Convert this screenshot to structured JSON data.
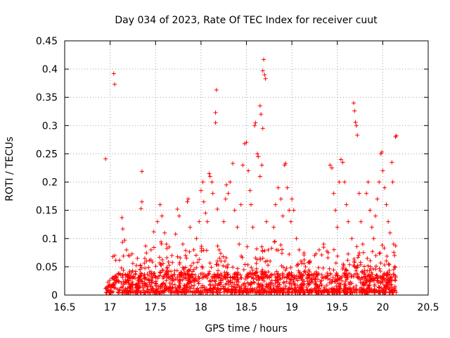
{
  "chart_data": {
    "type": "scatter",
    "title": "Day 034 of 2023, Rate Of TEC Index for receiver cuut",
    "xlabel": "GPS time / hours",
    "ylabel": "ROTI / TECUs",
    "xlim": [
      16.5,
      20.5
    ],
    "ylim": [
      0,
      0.45
    ],
    "xticks": [
      "16.5",
      "17",
      "17.5",
      "18",
      "18.5",
      "19",
      "19.5",
      "20",
      "20.5"
    ],
    "yticks": [
      "0",
      "0.05",
      "0.1",
      "0.15",
      "0.2",
      "0.25",
      "0.3",
      "0.35",
      "0.4",
      "0.45"
    ],
    "grid": true,
    "marker": "+",
    "color": "#ff0000",
    "series": [
      {
        "name": "ROTI",
        "points": [
          [
            16.95,
            0.241
          ],
          [
            17.04,
            0.392
          ],
          [
            17.05,
            0.373
          ],
          [
            17.03,
            0.068
          ],
          [
            17.05,
            0.07
          ],
          [
            17.13,
            0.137
          ],
          [
            17.14,
            0.117
          ],
          [
            17.16,
            0.097
          ],
          [
            17.18,
            0.08
          ],
          [
            17.2,
            0.07
          ],
          [
            17.25,
            0.056
          ],
          [
            17.3,
            0.065
          ],
          [
            17.33,
            0.052
          ],
          [
            17.35,
            0.219
          ],
          [
            17.35,
            0.165
          ],
          [
            17.34,
            0.153
          ],
          [
            17.4,
            0.06
          ],
          [
            17.45,
            0.08
          ],
          [
            17.48,
            0.112
          ],
          [
            17.52,
            0.13
          ],
          [
            17.55,
            0.16
          ],
          [
            17.57,
            0.14
          ],
          [
            17.6,
            0.11
          ],
          [
            17.62,
            0.09
          ],
          [
            17.65,
            0.085
          ],
          [
            17.68,
            0.07
          ],
          [
            17.72,
            0.108
          ],
          [
            17.74,
            0.152
          ],
          [
            17.76,
            0.14
          ],
          [
            17.8,
            0.09
          ],
          [
            17.83,
            0.07
          ],
          [
            17.85,
            0.165
          ],
          [
            17.86,
            0.17
          ],
          [
            17.88,
            0.12
          ],
          [
            17.92,
            0.08
          ],
          [
            17.95,
            0.1
          ],
          [
            17.98,
            0.13
          ],
          [
            18.0,
            0.185
          ],
          [
            18.02,
            0.2
          ],
          [
            18.03,
            0.165
          ],
          [
            18.05,
            0.145
          ],
          [
            18.07,
            0.13
          ],
          [
            18.09,
            0.215
          ],
          [
            18.1,
            0.21
          ],
          [
            18.12,
            0.2
          ],
          [
            18.13,
            0.18
          ],
          [
            18.16,
            0.305
          ],
          [
            18.16,
            0.323
          ],
          [
            18.17,
            0.363
          ],
          [
            18.18,
            0.152
          ],
          [
            18.2,
            0.08
          ],
          [
            18.22,
            0.06
          ],
          [
            18.25,
            0.13
          ],
          [
            18.27,
            0.17
          ],
          [
            18.28,
            0.195
          ],
          [
            18.3,
            0.18
          ],
          [
            18.32,
            0.2
          ],
          [
            18.35,
            0.233
          ],
          [
            18.37,
            0.15
          ],
          [
            18.4,
            0.12
          ],
          [
            18.42,
            0.09
          ],
          [
            18.44,
            0.16
          ],
          [
            18.46,
            0.23
          ],
          [
            18.48,
            0.268
          ],
          [
            18.5,
            0.27
          ],
          [
            18.52,
            0.22
          ],
          [
            18.54,
            0.185
          ],
          [
            18.55,
            0.16
          ],
          [
            18.57,
            0.12
          ],
          [
            18.59,
            0.3
          ],
          [
            18.6,
            0.305
          ],
          [
            18.62,
            0.25
          ],
          [
            18.63,
            0.245
          ],
          [
            18.65,
            0.335
          ],
          [
            18.66,
            0.32
          ],
          [
            18.68,
            0.397
          ],
          [
            18.69,
            0.417
          ],
          [
            18.7,
            0.39
          ],
          [
            18.71,
            0.383
          ],
          [
            18.68,
            0.295
          ],
          [
            18.65,
            0.21
          ],
          [
            18.67,
            0.23
          ],
          [
            18.72,
            0.13
          ],
          [
            18.74,
            0.08
          ],
          [
            18.76,
            0.06
          ],
          [
            18.8,
            0.12
          ],
          [
            18.82,
            0.16
          ],
          [
            18.85,
            0.19
          ],
          [
            18.88,
            0.17
          ],
          [
            18.9,
            0.14
          ],
          [
            18.92,
            0.23
          ],
          [
            18.93,
            0.233
          ],
          [
            18.95,
            0.19
          ],
          [
            18.97,
            0.15
          ],
          [
            18.99,
            0.13
          ],
          [
            19.0,
            0.17
          ],
          [
            19.02,
            0.15
          ],
          [
            19.05,
            0.1
          ],
          [
            19.08,
            0.08
          ],
          [
            19.1,
            0.06
          ],
          [
            19.15,
            0.05
          ],
          [
            19.2,
            0.06
          ],
          [
            19.25,
            0.07
          ],
          [
            19.3,
            0.08
          ],
          [
            19.35,
            0.09
          ],
          [
            19.4,
            0.075
          ],
          [
            19.42,
            0.23
          ],
          [
            19.44,
            0.225
          ],
          [
            19.46,
            0.18
          ],
          [
            19.48,
            0.15
          ],
          [
            19.5,
            0.12
          ],
          [
            19.52,
            0.2
          ],
          [
            19.54,
            0.24
          ],
          [
            19.56,
            0.235
          ],
          [
            19.58,
            0.2
          ],
          [
            19.6,
            0.16
          ],
          [
            19.62,
            0.13
          ],
          [
            19.66,
            0.1
          ],
          [
            19.68,
            0.34
          ],
          [
            19.69,
            0.326
          ],
          [
            19.7,
            0.306
          ],
          [
            19.71,
            0.3
          ],
          [
            19.72,
            0.283
          ],
          [
            19.74,
            0.18
          ],
          [
            19.76,
            0.13
          ],
          [
            19.78,
            0.09
          ],
          [
            19.82,
            0.18
          ],
          [
            19.84,
            0.2
          ],
          [
            19.86,
            0.15
          ],
          [
            19.88,
            0.12
          ],
          [
            19.9,
            0.1
          ],
          [
            19.92,
            0.14
          ],
          [
            19.94,
            0.17
          ],
          [
            19.96,
            0.2
          ],
          [
            19.98,
            0.25
          ],
          [
            19.99,
            0.253
          ],
          [
            20.0,
            0.22
          ],
          [
            20.02,
            0.19
          ],
          [
            20.04,
            0.16
          ],
          [
            20.06,
            0.13
          ],
          [
            20.08,
            0.11
          ],
          [
            20.1,
            0.235
          ],
          [
            20.11,
            0.2
          ],
          [
            20.12,
            0.09
          ],
          [
            20.13,
            0.07
          ],
          [
            20.14,
            0.28
          ],
          [
            20.15,
            0.282
          ],
          [
            20.13,
            0.05
          ],
          [
            20.12,
            0.045
          ]
        ]
      }
    ],
    "baseline_band": {
      "x_range": [
        16.95,
        20.15
      ],
      "y_range": [
        0.0,
        0.035
      ],
      "density_points_per_hour": 400
    }
  }
}
